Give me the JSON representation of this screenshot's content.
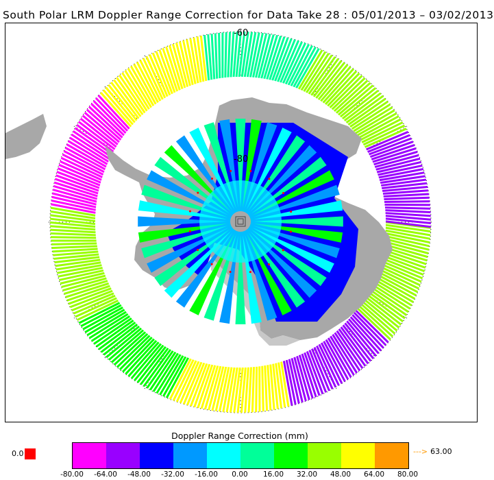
{
  "title": "South Polar LRM Doppler Range Correction for Data Take 28 : 05/01/2013 – 03/02/2013",
  "map": {
    "projection": "south-polar-stereographic",
    "lat_labels": [
      "-60",
      "-80"
    ],
    "land_color": "#a8a8a8",
    "ice_shelf_color": "#c8c8c8",
    "polar_hole_symbol": "□"
  },
  "legend": {
    "title": "Doppler Range Correction (mm)",
    "colors": [
      "#ff00ff",
      "#9900ff",
      "#0000ff",
      "#0099ff",
      "#00ffff",
      "#00ff99",
      "#00ff00",
      "#99ff00",
      "#ffff00",
      "#ff9900"
    ],
    "tick_labels": [
      "-80.00",
      "-64.00",
      "-48.00",
      "-32.00",
      "-16.00",
      "0.00",
      "16.00",
      "32.00",
      "48.00",
      "64.00",
      "80.00"
    ],
    "zero_label": "0.0",
    "zero_color": "#ff0000",
    "over_arrow_icon": "--->",
    "over_value": "63.00"
  }
}
